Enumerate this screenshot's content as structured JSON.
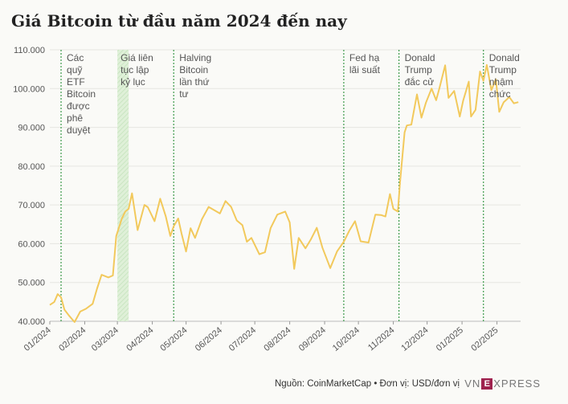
{
  "title": "Giá Bitcoin từ đầu năm 2024 đến nay",
  "footer": {
    "source": "Nguồn: CoinMarketCap • Đơn vị: USD/đơn vị",
    "logo_left": "VN",
    "logo_mid": "E",
    "logo_right": "XPRESS"
  },
  "colors": {
    "line": "#f2c95c",
    "event": "#3d9a4a",
    "band": "#dff0d8",
    "grid": "#e6e6e2"
  },
  "chart_data": {
    "type": "line",
    "title": "Giá Bitcoin từ đầu năm 2024 đến nay",
    "ylim": [
      40000,
      110000
    ],
    "yticks": [
      40000,
      50000,
      60000,
      70000,
      80000,
      90000,
      100000,
      110000
    ],
    "ytick_labels": [
      "40.000",
      "50.000",
      "60.000",
      "70.000",
      "80.000",
      "90.000",
      "100.000",
      "110.000"
    ],
    "xlim": [
      "2024-01-01",
      "2025-02-22"
    ],
    "xticks": [
      "2024-01-01",
      "2024-02-01",
      "2024-03-01",
      "2024-04-01",
      "2024-05-01",
      "2024-06-01",
      "2024-07-01",
      "2024-08-01",
      "2024-09-01",
      "2024-10-01",
      "2024-11-01",
      "2024-12-01",
      "2025-01-01",
      "2025-02-01"
    ],
    "xtick_labels": [
      "01/2024",
      "02/2024",
      "03/2024",
      "04/2024",
      "05/2024",
      "06/2024",
      "07/2024",
      "08/2024",
      "09/2024",
      "10/2024",
      "11/2024",
      "12/2024",
      "01/2025",
      "02/2025"
    ],
    "grid": true,
    "series": [
      {
        "x": [
          "2024-01-01",
          "2024-01-05",
          "2024-01-08",
          "2024-01-11",
          "2024-01-14",
          "2024-01-18",
          "2024-01-23",
          "2024-01-28",
          "2024-02-02",
          "2024-02-08",
          "2024-02-12",
          "2024-02-16",
          "2024-02-22",
          "2024-02-26",
          "2024-02-29",
          "2024-03-05",
          "2024-03-08",
          "2024-03-11",
          "2024-03-14",
          "2024-03-19",
          "2024-03-25",
          "2024-03-28",
          "2024-04-03",
          "2024-04-08",
          "2024-04-13",
          "2024-04-17",
          "2024-04-20",
          "2024-04-24",
          "2024-04-27",
          "2024-05-01",
          "2024-05-05",
          "2024-05-09",
          "2024-05-15",
          "2024-05-21",
          "2024-05-25",
          "2024-05-31",
          "2024-06-05",
          "2024-06-10",
          "2024-06-15",
          "2024-06-20",
          "2024-06-24",
          "2024-06-28",
          "2024-07-05",
          "2024-07-10",
          "2024-07-15",
          "2024-07-21",
          "2024-07-28",
          "2024-08-01",
          "2024-08-05",
          "2024-08-09",
          "2024-08-15",
          "2024-08-20",
          "2024-08-25",
          "2024-08-30",
          "2024-09-06",
          "2024-09-12",
          "2024-09-18",
          "2024-09-23",
          "2024-09-28",
          "2024-10-03",
          "2024-10-10",
          "2024-10-16",
          "2024-10-21",
          "2024-10-25",
          "2024-10-29",
          "2024-11-01",
          "2024-11-05",
          "2024-11-07",
          "2024-11-11",
          "2024-11-13",
          "2024-11-17",
          "2024-11-22",
          "2024-11-26",
          "2024-11-30",
          "2024-12-05",
          "2024-12-09",
          "2024-12-12",
          "2024-12-17",
          "2024-12-20",
          "2024-12-25",
          "2024-12-30",
          "2025-01-02",
          "2025-01-07",
          "2025-01-09",
          "2025-01-13",
          "2025-01-17",
          "2025-01-20",
          "2025-01-23",
          "2025-01-27",
          "2025-01-31",
          "2025-02-03",
          "2025-02-07",
          "2025-02-12",
          "2025-02-16",
          "2025-02-20"
        ],
        "y": [
          44200,
          45000,
          47000,
          46200,
          43000,
          41500,
          39800,
          42500,
          43200,
          44500,
          48500,
          52000,
          51300,
          51800,
          62000,
          66500,
          68300,
          69000,
          73000,
          63500,
          70000,
          69400,
          65800,
          71600,
          67000,
          62000,
          64500,
          66500,
          62600,
          58000,
          64000,
          61500,
          66300,
          69500,
          68800,
          67800,
          71000,
          69500,
          66000,
          64800,
          60500,
          61500,
          57300,
          57800,
          64000,
          67500,
          68300,
          65500,
          53500,
          61500,
          58800,
          61200,
          64100,
          59000,
          53700,
          58000,
          60500,
          63400,
          65800,
          60600,
          60300,
          67500,
          67400,
          67000,
          72800,
          69000,
          68300,
          76000,
          88700,
          90500,
          90700,
          98500,
          92500,
          96400,
          100000,
          97000,
          100200,
          106000,
          97600,
          99400,
          92800,
          96900,
          101800,
          92800,
          94500,
          104400,
          102000,
          106100,
          99600,
          102400,
          94000,
          96500,
          97800,
          96200,
          96500
        ]
      }
    ],
    "events": [
      {
        "date": "2024-01-11",
        "label": [
          "Các",
          "quỹ",
          "ETF",
          "Bitcoin",
          "được",
          "phê",
          "duyệt"
        ]
      },
      {
        "date": "2024-04-20",
        "label": [
          "Halving",
          "Bitcoin",
          "lần thứ",
          "tư"
        ]
      },
      {
        "date": "2024-09-18",
        "label": [
          "Fed hạ",
          "lãi suất"
        ]
      },
      {
        "date": "2024-11-06",
        "label": [
          "Donald",
          "Trump",
          "đắc cử"
        ]
      },
      {
        "date": "2025-01-20",
        "label": [
          "Donald",
          "Trump",
          "nhậm",
          "chức"
        ]
      }
    ],
    "bands": [
      {
        "start": "2024-03-01",
        "end": "2024-03-11",
        "label": [
          "Giá liên",
          "tục lập",
          "kỷ lục"
        ]
      }
    ]
  }
}
